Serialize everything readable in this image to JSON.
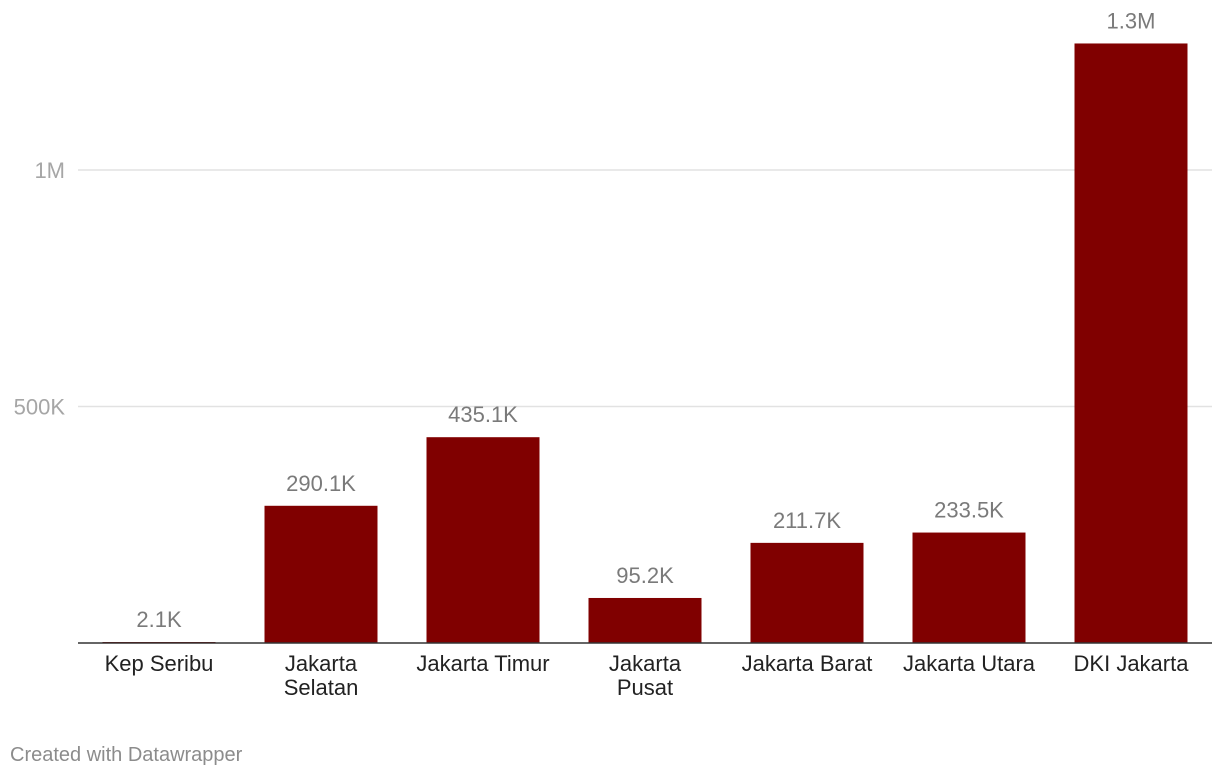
{
  "chart_data": {
    "type": "bar",
    "categories": [
      [
        "Kep Seribu"
      ],
      [
        "Jakarta",
        "Selatan"
      ],
      [
        "Jakarta Timur"
      ],
      [
        "Jakarta",
        "Pusat"
      ],
      [
        "Jakarta Barat"
      ],
      [
        "Jakarta Utara"
      ],
      [
        "DKI Jakarta"
      ]
    ],
    "values": [
      2100,
      290100,
      435100,
      95200,
      211700,
      233500,
      1267500
    ],
    "value_labels": [
      "2.1K",
      "290.1K",
      "435.1K",
      "95.2K",
      "211.7K",
      "233.5K",
      "1.3M"
    ],
    "yticks": [
      {
        "value": 500000,
        "label": "500K"
      },
      {
        "value": 1000000,
        "label": "1M"
      }
    ],
    "ylim": [
      0,
      1300000
    ],
    "grid": true,
    "colors": {
      "bar": "#800000",
      "grid": "#e2e2e2",
      "baseline": "#333333",
      "tick_label": "#a6a6a6",
      "value_label": "#7a7a7a",
      "category_label": "#222222"
    }
  },
  "footer": {
    "credit": "Created with Datawrapper"
  }
}
